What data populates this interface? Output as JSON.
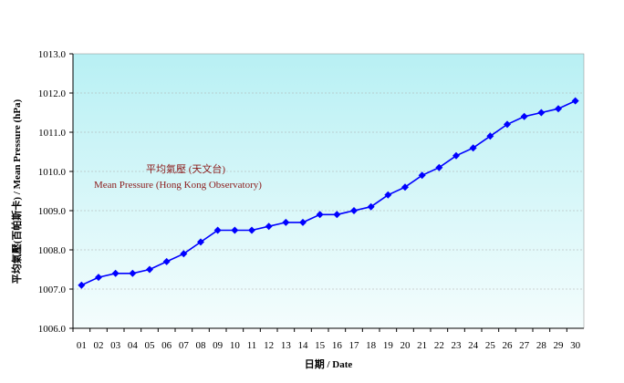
{
  "chart_data": {
    "type": "line",
    "xlabel": "日期 / Date",
    "ylabel": "平均氣壓(百帕斯卡) / Mean Pressure (hPa)",
    "ylim": [
      1006.0,
      1013.0
    ],
    "yticks": [
      "1006.0",
      "1007.0",
      "1008.0",
      "1009.0",
      "1010.0",
      "1011.0",
      "1012.0",
      "1013.0"
    ],
    "grid": true,
    "categories": [
      "01",
      "02",
      "03",
      "04",
      "05",
      "06",
      "07",
      "08",
      "09",
      "10",
      "11",
      "12",
      "13",
      "14",
      "15",
      "16",
      "17",
      "18",
      "19",
      "20",
      "21",
      "22",
      "23",
      "24",
      "25",
      "26",
      "27",
      "28",
      "29",
      "30"
    ],
    "series": [
      {
        "values": [
          1007.1,
          1007.3,
          1007.4,
          1007.4,
          1007.5,
          1007.7,
          1007.9,
          1008.2,
          1008.5,
          1008.5,
          1008.5,
          1008.6,
          1008.7,
          1008.7,
          1008.9,
          1008.9,
          1009.0,
          1009.1,
          1009.4,
          1009.6,
          1009.9,
          1010.1,
          1010.4,
          1010.6,
          1010.9,
          1011.2,
          1011.4,
          1011.5,
          1011.6,
          1011.8
        ],
        "color": "#0000ff"
      }
    ],
    "annotation": {
      "zh": "平均氣壓 (天文台)",
      "en": "Mean Pressure (Hong Kong Observatory)",
      "color": "#8b1a1a"
    },
    "colors": {
      "line": "#0000ff",
      "marker": "#0000ff",
      "bg_top": "#b8f0f4",
      "bg_bottom": "#f4fdfd"
    }
  }
}
